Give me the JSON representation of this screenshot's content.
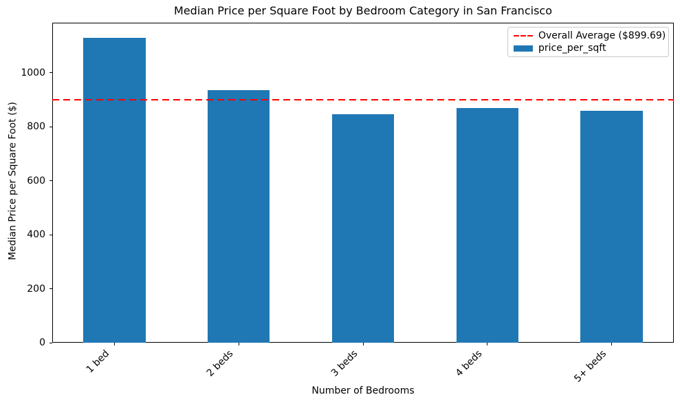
{
  "figure": {
    "background": "#ffffff",
    "text_color": "#000000"
  },
  "chart_data": {
    "type": "bar",
    "title": "Median Price per Square Foot by Bedroom Category in San Francisco",
    "xlabel": "Number of Bedrooms",
    "ylabel": "Median Price per Square Foot ($)",
    "categories": [
      "1 bed",
      "2 beds",
      "3 beds",
      "4 beds",
      "5+ beds"
    ],
    "series": [
      {
        "name": "price_per_sqft",
        "color": "#1f77b4",
        "values": [
          1130,
          935,
          846,
          870,
          860
        ]
      }
    ],
    "reference_line": {
      "label": "Overall Average ($899.69)",
      "value": 899.69,
      "color": "#ff0000",
      "style": "dashed"
    },
    "ylim": [
      0,
      1186
    ],
    "yticks": [
      0,
      200,
      400,
      600,
      800,
      1000
    ],
    "xtick_rotation": 45,
    "grid": false,
    "legend_position": "upper right"
  }
}
